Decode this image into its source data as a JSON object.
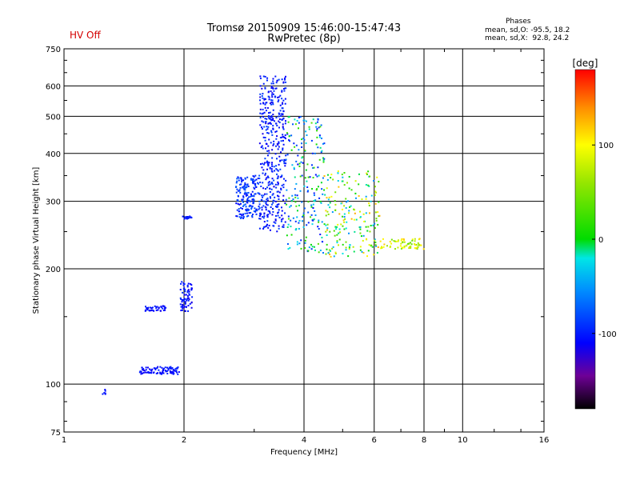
{
  "header": {
    "hv_status": "HV Off",
    "title_line1": "Tromsø 20150909 15:46:00-15:47:43",
    "title_line2": "RwPretec (8p)",
    "phase_heading": "Phases",
    "phase_o": "mean, sd,O: -95.5, 18.2",
    "phase_x": "mean, sd,X:  92.8, 24.2"
  },
  "colorbar": {
    "label": "[deg]",
    "ticks": [
      "100",
      "0",
      "-100"
    ],
    "range": [
      -180,
      180
    ]
  },
  "chart_data": {
    "type": "scatter",
    "title": "Tromsø 20150909 15:46:00-15:47:43",
    "subtitle": "RwPretec (8p)",
    "xlabel": "Frequency [MHz]",
    "ylabel": "Stationary phase Virtual Height [km]",
    "x_scale": "log",
    "y_scale": "log",
    "xlim": [
      1,
      16
    ],
    "ylim": [
      75,
      750
    ],
    "x_ticks": [
      "1",
      "2",
      "4",
      "6",
      "8",
      "10",
      "16"
    ],
    "y_ticks": [
      "75",
      "100",
      "200",
      "300",
      "400",
      "500",
      "600",
      "750"
    ],
    "grid": true,
    "color_scale": "phase [deg], -180 to 180",
    "clusters": [
      {
        "desc": "isolated echo",
        "f": [
          1.25,
          1.27
        ],
        "h": [
          94,
          97
        ],
        "n": 6,
        "phase": [
          -110,
          -95
        ]
      },
      {
        "desc": "E trace",
        "f": [
          1.55,
          1.95
        ],
        "h": [
          106,
          111
        ],
        "n": 90,
        "phase": [
          -115,
          -95
        ]
      },
      {
        "desc": "E trace",
        "f": [
          1.6,
          1.8
        ],
        "h": [
          155,
          160
        ],
        "n": 45,
        "phase": [
          -115,
          -95
        ]
      },
      {
        "desc": "Es cluster",
        "f": [
          1.96,
          2.1
        ],
        "h": [
          155,
          185
        ],
        "n": 70,
        "phase": [
          -120,
          -90
        ]
      },
      {
        "desc": "spread echo",
        "f": [
          1.98,
          2.12
        ],
        "h": [
          270,
          275
        ],
        "n": 18,
        "phase": [
          -110,
          -90
        ]
      },
      {
        "desc": "F trace",
        "f": [
          2.7,
          3.1
        ],
        "h": [
          270,
          350
        ],
        "n": 180,
        "phase": [
          -110,
          -70
        ]
      },
      {
        "desc": "F trace",
        "f": [
          3.1,
          3.6
        ],
        "h": [
          250,
          640
        ],
        "n": 420,
        "phase": [
          -120,
          -80
        ]
      },
      {
        "desc": "spread F",
        "f": [
          3.6,
          4.5
        ],
        "h": [
          220,
          500
        ],
        "n": 220,
        "phase": [
          -110,
          40
        ]
      },
      {
        "desc": "spread F",
        "f": [
          4.5,
          6.2
        ],
        "h": [
          215,
          360
        ],
        "n": 200,
        "phase": [
          -60,
          130
        ]
      },
      {
        "desc": "spread F",
        "f": [
          6.2,
          8.0
        ],
        "h": [
          225,
          240
        ],
        "n": 70,
        "phase": [
          40,
          120
        ]
      }
    ]
  }
}
